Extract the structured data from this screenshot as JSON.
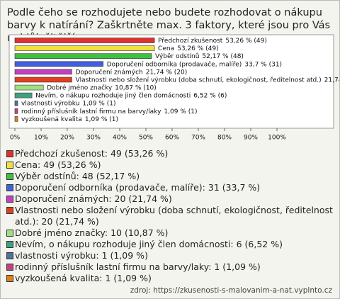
{
  "chart_data": {
    "type": "hbar",
    "title": "Podle čeho se rozhodujete nebo budete rozhodovat o nákupu barvy k natírání? Zaškrtněte max. 3 faktory, které jsou pro Vás nejdůležitější.",
    "categories": [
      "Předchozí zkušenost",
      "Cena",
      "Výběr odstínů",
      "Doporučení odborníka (prodavače, malíře)",
      "Doporučení známých",
      "Vlastnosti nebo složení výrobku (doba schnutí, ekologičnost, ředitelnost atd.)",
      "Dobré jméno značky",
      "Nevím, o nákupu rozhoduje jiný člen domácnosti",
      "vlastnosti výrobku",
      "rodinný příslušník lastní firmu na barvy/laky",
      "vyzkoušená kvalita"
    ],
    "values": [
      53.26,
      53.26,
      52.17,
      33.7,
      21.74,
      21.74,
      10.87,
      6.52,
      1.09,
      1.09,
      1.09
    ],
    "value_labels": [
      "53,26 % (49)",
      "53,26 % (49)",
      "52,17 % (48)",
      "33,7 % (31)",
      "21,74 % (20)",
      "21,74 % (20)",
      "10,87 % (10)",
      "6,52 % (6)",
      "1,09 % (1)",
      "1,09 % (1)",
      "1,09 % (1)"
    ],
    "legend_labels": [
      "Předchozí zkušenost: 49 (53,26 %)",
      "Cena: 49 (53,26 %)",
      "Výběr odstínů: 48 (52,17 %)",
      "Doporučení odborníka (prodavače, malíře): 31 (33,7 %)",
      "Doporučení známých: 20 (21,74 %)",
      "Vlastnosti nebo složení výrobku (doba schnutí, ekologičnost, ředitelnost atd.): 20 (21,74 %)",
      "Dobré jméno značky: 10 (10,87 %)",
      "Nevím, o nákupu rozhoduje jiný člen domácnosti: 6 (6,52 %)",
      "vlastnosti výrobku: 1 (1,09 %)",
      "rodinný příslušník lastní firmu na barvy/laky: 1 (1,09 %)",
      "vyzkoušená kvalita: 1 (1,09 %)"
    ],
    "colors": [
      "#e03030",
      "#f0e040",
      "#40c040",
      "#4060e0",
      "#c040c0",
      "#e04020",
      "#a0e080",
      "#40a080",
      "#5070a0",
      "#c04080",
      "#e08020"
    ],
    "xlim": [
      0,
      100
    ],
    "xticks": [
      {
        "value": 0,
        "label": "0%"
      },
      {
        "value": 10,
        "label": "10%"
      },
      {
        "value": 20,
        "label": "20%"
      },
      {
        "value": 30,
        "label": "30%"
      },
      {
        "value": 40,
        "label": "40%"
      },
      {
        "value": 50,
        "label": "50%"
      },
      {
        "value": 60,
        "label": "60%"
      },
      {
        "value": 70,
        "label": "70%"
      },
      {
        "value": 80,
        "label": "80%"
      },
      {
        "value": 90,
        "label": "90%"
      },
      {
        "value": 100,
        "label": "100%"
      }
    ],
    "source": "zdroj: https://zkusenosti-s-malovanim-a-nat.vyplnto.cz"
  }
}
